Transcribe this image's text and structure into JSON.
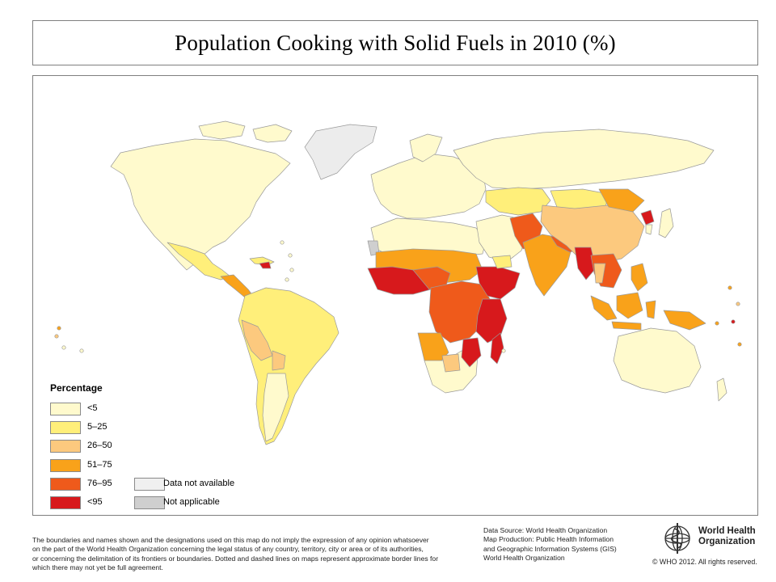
{
  "title": "Population Cooking with Solid Fuels in 2010 (%)",
  "legend": {
    "title": "Percentage",
    "items": [
      {
        "label": "<5",
        "color": "#fffacd"
      },
      {
        "label": "5–25",
        "color": "#ffef7a"
      },
      {
        "label": "26–50",
        "color": "#fcc97e"
      },
      {
        "label": "51–75",
        "color": "#f9a21a"
      },
      {
        "label": "76–95",
        "color": "#ef5a1b"
      },
      {
        "label": "<95",
        "color": "#d7191c"
      }
    ],
    "other": [
      {
        "label": "Data not available",
        "color": "#f0f0f0"
      },
      {
        "label": "Not applicable",
        "color": "#cfcfcf"
      }
    ]
  },
  "disclaimer": [
    "The boundaries and names shown and the designations used on this map do not imply the expression of any opinion whatsoever",
    "on the part of the World Health Organization concerning the legal status of any country, territory, city or area or of its authorities,",
    "or concerning the delimitation of its frontiers or boundaries.  Dotted and dashed lines on maps represent approximate border lines for",
    "which there may not yet be full agreement."
  ],
  "source": [
    "Data Source: World Health Organization",
    "Map Production: Public Health Information",
    "and Geographic Information Systems (GIS)",
    "World Health Organization"
  ],
  "org": {
    "name_line1": "World Health",
    "name_line2": "Organization",
    "logo": "who-emblem-icon"
  },
  "copyright": "© WHO 2012. All rights reserved."
}
